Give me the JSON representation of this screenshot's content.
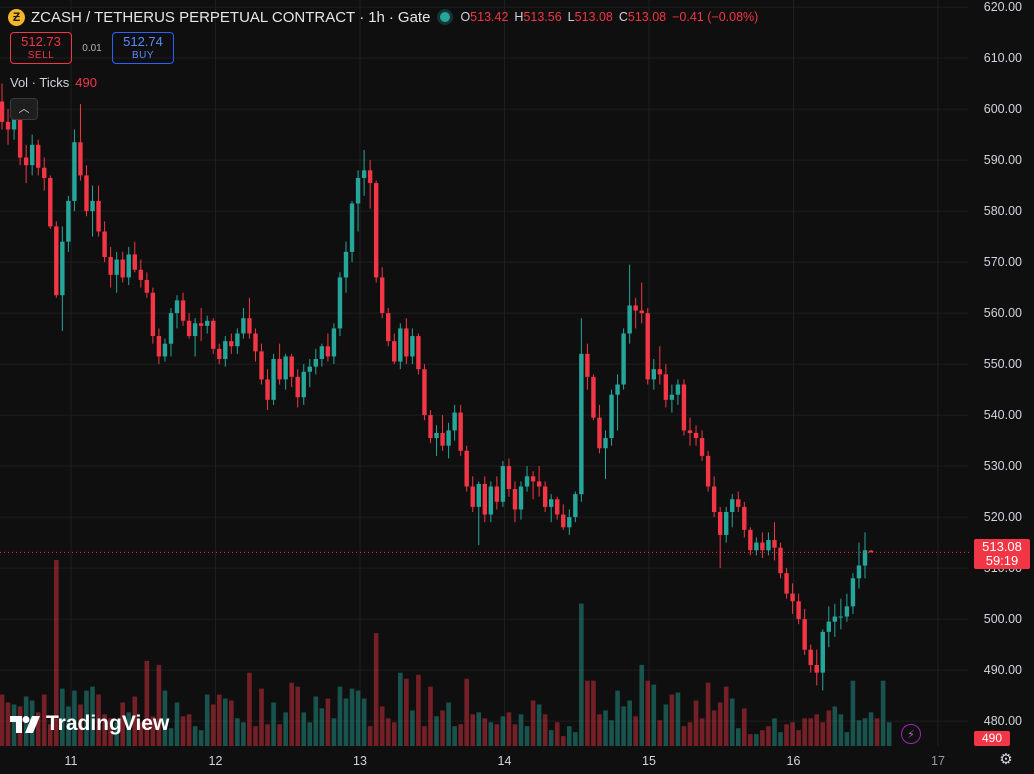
{
  "header": {
    "coin_symbol": "Ƶ",
    "title": "ZCASH / TETHERUS PERPETUAL CONTRACT",
    "interval": "1h",
    "exchange": "Gate",
    "o_label": "O",
    "o_value": "513.42",
    "h_label": "H",
    "h_value": "513.56",
    "l_label": "L",
    "l_value": "513.08",
    "c_label": "C",
    "c_value": "513.08",
    "change": "−0.41 (−0.08%)"
  },
  "trade": {
    "sell_price": "512.73",
    "sell_label": "SELL",
    "spread": "0.01",
    "buy_price": "512.74",
    "buy_label": "BUY"
  },
  "volume_legend": {
    "label": "Vol · Ticks",
    "value": "490"
  },
  "last_price": {
    "price": "513.08",
    "countdown": "59:19"
  },
  "volume_last": "490",
  "branding": "TradingView",
  "colors": {
    "up": "#26a69a",
    "down": "#f23645",
    "background": "#0f0f0f",
    "grid": "#1f1f1f"
  },
  "icons": {
    "collapse": "chevron-up-icon",
    "bolt": "lightning-icon",
    "settings": "gear-icon"
  },
  "chart_data": {
    "type": "candlestick",
    "interval": "1h",
    "x_tick_labels": [
      "11",
      "12",
      "13",
      "14",
      "15",
      "16",
      "17"
    ],
    "y_tick_labels": [
      "480.00",
      "490.00",
      "500.00",
      "510.00",
      "520.00",
      "530.00",
      "540.00",
      "550.00",
      "560.00",
      "570.00",
      "580.00",
      "590.00",
      "600.00",
      "610.00",
      "620.00"
    ],
    "ylim": [
      476,
      621
    ],
    "grid": true,
    "last_price": 513.08,
    "candles": [
      {
        "o": 601.5,
        "h": 605.0,
        "l": 596.0,
        "c": 597.5
      },
      {
        "o": 597.5,
        "h": 600.0,
        "l": 593.0,
        "c": 596.0
      },
      {
        "o": 596.0,
        "h": 601.0,
        "l": 594.0,
        "c": 598.5
      },
      {
        "o": 598.5,
        "h": 600.5,
        "l": 589.0,
        "c": 590.5
      },
      {
        "o": 590.5,
        "h": 593.0,
        "l": 585.5,
        "c": 589.0
      },
      {
        "o": 589.0,
        "h": 595.0,
        "l": 587.0,
        "c": 593.0
      },
      {
        "o": 593.0,
        "h": 594.0,
        "l": 587.0,
        "c": 588.5
      },
      {
        "o": 588.5,
        "h": 590.5,
        "l": 584.0,
        "c": 586.5
      },
      {
        "o": 586.5,
        "h": 587.0,
        "l": 576.5,
        "c": 577.0
      },
      {
        "o": 577.0,
        "h": 578.0,
        "l": 563.0,
        "c": 563.5
      },
      {
        "o": 563.5,
        "h": 577.0,
        "l": 556.5,
        "c": 574.0
      },
      {
        "o": 574.0,
        "h": 583.0,
        "l": 572.0,
        "c": 582.0
      },
      {
        "o": 582.0,
        "h": 596.0,
        "l": 580.0,
        "c": 593.5
      },
      {
        "o": 593.5,
        "h": 601.0,
        "l": 586.0,
        "c": 587.0
      },
      {
        "o": 587.0,
        "h": 589.0,
        "l": 579.0,
        "c": 580.0
      },
      {
        "o": 580.0,
        "h": 585.0,
        "l": 575.0,
        "c": 582.0
      },
      {
        "o": 582.0,
        "h": 585.0,
        "l": 575.0,
        "c": 576.0
      },
      {
        "o": 576.0,
        "h": 578.0,
        "l": 570.0,
        "c": 571.0
      },
      {
        "o": 571.0,
        "h": 573.0,
        "l": 565.0,
        "c": 567.5
      },
      {
        "o": 567.5,
        "h": 572.0,
        "l": 564.0,
        "c": 570.5
      },
      {
        "o": 570.5,
        "h": 572.0,
        "l": 566.0,
        "c": 567.0
      },
      {
        "o": 567.0,
        "h": 573.0,
        "l": 565.5,
        "c": 571.5
      },
      {
        "o": 571.5,
        "h": 574.0,
        "l": 568.0,
        "c": 568.5
      },
      {
        "o": 568.5,
        "h": 570.5,
        "l": 565.0,
        "c": 566.5
      },
      {
        "o": 566.5,
        "h": 568.0,
        "l": 563.0,
        "c": 564.0
      },
      {
        "o": 564.0,
        "h": 565.0,
        "l": 554.0,
        "c": 555.5
      },
      {
        "o": 555.5,
        "h": 557.0,
        "l": 550.0,
        "c": 551.5
      },
      {
        "o": 551.5,
        "h": 555.0,
        "l": 550.5,
        "c": 554.0
      },
      {
        "o": 554.0,
        "h": 561.0,
        "l": 551.5,
        "c": 560.0
      },
      {
        "o": 560.0,
        "h": 563.5,
        "l": 557.0,
        "c": 562.5
      },
      {
        "o": 562.5,
        "h": 564.0,
        "l": 557.5,
        "c": 558.5
      },
      {
        "o": 558.5,
        "h": 560.0,
        "l": 555.0,
        "c": 555.5
      },
      {
        "o": 555.5,
        "h": 559.0,
        "l": 551.5,
        "c": 558.0
      },
      {
        "o": 558.0,
        "h": 561.0,
        "l": 554.5,
        "c": 557.5
      },
      {
        "o": 557.5,
        "h": 559.5,
        "l": 556.0,
        "c": 558.5
      },
      {
        "o": 558.5,
        "h": 559.0,
        "l": 552.0,
        "c": 553.0
      },
      {
        "o": 553.0,
        "h": 554.0,
        "l": 550.0,
        "c": 551.0
      },
      {
        "o": 551.0,
        "h": 555.5,
        "l": 549.5,
        "c": 554.5
      },
      {
        "o": 554.5,
        "h": 556.0,
        "l": 552.0,
        "c": 553.5
      },
      {
        "o": 553.5,
        "h": 557.0,
        "l": 552.0,
        "c": 556.0
      },
      {
        "o": 556.0,
        "h": 561.0,
        "l": 555.0,
        "c": 559.0
      },
      {
        "o": 559.0,
        "h": 563.0,
        "l": 555.0,
        "c": 556.0
      },
      {
        "o": 556.0,
        "h": 557.0,
        "l": 550.5,
        "c": 552.5
      },
      {
        "o": 552.5,
        "h": 554.0,
        "l": 546.0,
        "c": 547.0
      },
      {
        "o": 547.0,
        "h": 549.0,
        "l": 541.0,
        "c": 543.0
      },
      {
        "o": 543.0,
        "h": 552.0,
        "l": 542.0,
        "c": 551.0
      },
      {
        "o": 551.0,
        "h": 554.0,
        "l": 546.0,
        "c": 547.0
      },
      {
        "o": 547.0,
        "h": 552.0,
        "l": 545.0,
        "c": 551.5
      },
      {
        "o": 551.5,
        "h": 552.0,
        "l": 545.5,
        "c": 547.5
      },
      {
        "o": 547.5,
        "h": 549.0,
        "l": 541.5,
        "c": 543.5
      },
      {
        "o": 543.5,
        "h": 550.0,
        "l": 542.0,
        "c": 548.5
      },
      {
        "o": 548.5,
        "h": 551.0,
        "l": 545.5,
        "c": 549.5
      },
      {
        "o": 549.5,
        "h": 553.0,
        "l": 548.0,
        "c": 551.0
      },
      {
        "o": 551.0,
        "h": 554.0,
        "l": 549.5,
        "c": 553.5
      },
      {
        "o": 553.5,
        "h": 556.0,
        "l": 550.5,
        "c": 551.5
      },
      {
        "o": 551.5,
        "h": 558.0,
        "l": 550.0,
        "c": 557.0
      },
      {
        "o": 557.0,
        "h": 568.0,
        "l": 555.5,
        "c": 567.0
      },
      {
        "o": 567.0,
        "h": 574.0,
        "l": 564.0,
        "c": 572.0
      },
      {
        "o": 572.0,
        "h": 582.0,
        "l": 570.0,
        "c": 581.5
      },
      {
        "o": 581.5,
        "h": 588.0,
        "l": 576.0,
        "c": 586.5
      },
      {
        "o": 586.5,
        "h": 592.0,
        "l": 583.0,
        "c": 588.0
      },
      {
        "o": 588.0,
        "h": 590.0,
        "l": 580.5,
        "c": 585.5
      },
      {
        "o": 585.5,
        "h": 586.0,
        "l": 566.0,
        "c": 567.0
      },
      {
        "o": 567.0,
        "h": 569.0,
        "l": 559.0,
        "c": 560.0
      },
      {
        "o": 560.0,
        "h": 561.0,
        "l": 553.5,
        "c": 554.5
      },
      {
        "o": 554.5,
        "h": 556.0,
        "l": 550.0,
        "c": 550.5
      },
      {
        "o": 550.5,
        "h": 558.0,
        "l": 549.0,
        "c": 557.0
      },
      {
        "o": 557.0,
        "h": 559.0,
        "l": 550.0,
        "c": 551.5
      },
      {
        "o": 551.5,
        "h": 557.0,
        "l": 550.0,
        "c": 555.5
      },
      {
        "o": 555.5,
        "h": 556.0,
        "l": 548.0,
        "c": 549.0
      },
      {
        "o": 549.0,
        "h": 550.0,
        "l": 539.0,
        "c": 540.0
      },
      {
        "o": 540.0,
        "h": 541.0,
        "l": 534.5,
        "c": 535.5
      },
      {
        "o": 535.5,
        "h": 538.0,
        "l": 532.0,
        "c": 536.5
      },
      {
        "o": 536.5,
        "h": 540.0,
        "l": 533.0,
        "c": 534.0
      },
      {
        "o": 534.0,
        "h": 538.5,
        "l": 531.5,
        "c": 537.0
      },
      {
        "o": 537.0,
        "h": 542.0,
        "l": 535.0,
        "c": 540.5
      },
      {
        "o": 540.5,
        "h": 542.0,
        "l": 532.0,
        "c": 533.0
      },
      {
        "o": 533.0,
        "h": 534.0,
        "l": 525.0,
        "c": 526.0
      },
      {
        "o": 526.0,
        "h": 528.0,
        "l": 521.0,
        "c": 522.0
      },
      {
        "o": 522.0,
        "h": 527.0,
        "l": 514.5,
        "c": 526.5
      },
      {
        "o": 526.5,
        "h": 528.0,
        "l": 519.0,
        "c": 520.5
      },
      {
        "o": 520.5,
        "h": 527.0,
        "l": 519.0,
        "c": 526.0
      },
      {
        "o": 526.0,
        "h": 528.0,
        "l": 521.5,
        "c": 523.0
      },
      {
        "o": 523.0,
        "h": 531.0,
        "l": 522.0,
        "c": 530.0
      },
      {
        "o": 530.0,
        "h": 531.5,
        "l": 524.0,
        "c": 525.5
      },
      {
        "o": 525.5,
        "h": 527.0,
        "l": 519.0,
        "c": 521.5
      },
      {
        "o": 521.5,
        "h": 527.0,
        "l": 519.5,
        "c": 526.0
      },
      {
        "o": 526.0,
        "h": 530.0,
        "l": 525.0,
        "c": 528.0
      },
      {
        "o": 528.0,
        "h": 529.0,
        "l": 523.5,
        "c": 527.0
      },
      {
        "o": 527.0,
        "h": 530.0,
        "l": 524.0,
        "c": 526.0
      },
      {
        "o": 526.0,
        "h": 527.0,
        "l": 521.0,
        "c": 522.0
      },
      {
        "o": 522.0,
        "h": 524.5,
        "l": 519.0,
        "c": 523.5
      },
      {
        "o": 523.5,
        "h": 524.0,
        "l": 519.5,
        "c": 520.5
      },
      {
        "o": 520.5,
        "h": 522.5,
        "l": 517.5,
        "c": 518.0
      },
      {
        "o": 518.0,
        "h": 521.5,
        "l": 516.5,
        "c": 520.0
      },
      {
        "o": 520.0,
        "h": 525.0,
        "l": 519.0,
        "c": 524.5
      },
      {
        "o": 524.5,
        "h": 559.0,
        "l": 523.0,
        "c": 552.0
      },
      {
        "o": 552.0,
        "h": 554.0,
        "l": 545.0,
        "c": 547.5
      },
      {
        "o": 547.5,
        "h": 548.0,
        "l": 539.0,
        "c": 539.5
      },
      {
        "o": 539.5,
        "h": 542.0,
        "l": 532.5,
        "c": 533.5
      },
      {
        "o": 533.5,
        "h": 537.0,
        "l": 527.5,
        "c": 535.5
      },
      {
        "o": 535.5,
        "h": 545.0,
        "l": 534.0,
        "c": 544.0
      },
      {
        "o": 544.0,
        "h": 548.0,
        "l": 537.0,
        "c": 546.0
      },
      {
        "o": 546.0,
        "h": 557.0,
        "l": 545.0,
        "c": 556.0
      },
      {
        "o": 556.0,
        "h": 569.5,
        "l": 554.0,
        "c": 561.5
      },
      {
        "o": 561.5,
        "h": 563.0,
        "l": 557.0,
        "c": 560.5
      },
      {
        "o": 560.5,
        "h": 566.0,
        "l": 558.0,
        "c": 560.0
      },
      {
        "o": 560.0,
        "h": 561.0,
        "l": 546.0,
        "c": 547.0
      },
      {
        "o": 547.0,
        "h": 551.0,
        "l": 545.0,
        "c": 549.0
      },
      {
        "o": 549.0,
        "h": 553.5,
        "l": 546.0,
        "c": 548.0
      },
      {
        "o": 548.0,
        "h": 550.0,
        "l": 541.5,
        "c": 543.0
      },
      {
        "o": 543.0,
        "h": 546.0,
        "l": 540.5,
        "c": 544.0
      },
      {
        "o": 544.0,
        "h": 547.0,
        "l": 542.0,
        "c": 546.0
      },
      {
        "o": 546.0,
        "h": 547.0,
        "l": 536.0,
        "c": 537.0
      },
      {
        "o": 537.0,
        "h": 539.5,
        "l": 534.0,
        "c": 536.5
      },
      {
        "o": 536.5,
        "h": 538.0,
        "l": 534.0,
        "c": 535.5
      },
      {
        "o": 535.5,
        "h": 537.0,
        "l": 531.0,
        "c": 532.0
      },
      {
        "o": 532.0,
        "h": 533.0,
        "l": 525.0,
        "c": 526.0
      },
      {
        "o": 526.0,
        "h": 528.0,
        "l": 520.0,
        "c": 521.0
      },
      {
        "o": 521.0,
        "h": 522.0,
        "l": 510.0,
        "c": 516.5
      },
      {
        "o": 516.5,
        "h": 522.0,
        "l": 515.0,
        "c": 521.0
      },
      {
        "o": 521.0,
        "h": 524.5,
        "l": 518.0,
        "c": 523.5
      },
      {
        "o": 523.5,
        "h": 525.0,
        "l": 521.0,
        "c": 522.0
      },
      {
        "o": 522.0,
        "h": 523.0,
        "l": 516.0,
        "c": 517.5
      },
      {
        "o": 517.5,
        "h": 518.0,
        "l": 512.5,
        "c": 513.5
      },
      {
        "o": 513.5,
        "h": 516.0,
        "l": 512.5,
        "c": 515.0
      },
      {
        "o": 515.0,
        "h": 517.0,
        "l": 512.0,
        "c": 513.5
      },
      {
        "o": 513.5,
        "h": 517.0,
        "l": 512.5,
        "c": 515.5
      },
      {
        "o": 515.5,
        "h": 519.0,
        "l": 511.5,
        "c": 514.0
      },
      {
        "o": 514.0,
        "h": 515.0,
        "l": 508.0,
        "c": 509.0
      },
      {
        "o": 509.0,
        "h": 510.0,
        "l": 504.0,
        "c": 505.0
      },
      {
        "o": 505.0,
        "h": 507.0,
        "l": 501.0,
        "c": 503.5
      },
      {
        "o": 503.5,
        "h": 505.0,
        "l": 499.0,
        "c": 500.0
      },
      {
        "o": 500.0,
        "h": 502.0,
        "l": 493.0,
        "c": 494.0
      },
      {
        "o": 494.0,
        "h": 495.0,
        "l": 489.5,
        "c": 491.0
      },
      {
        "o": 491.0,
        "h": 494.0,
        "l": 487.0,
        "c": 489.5
      },
      {
        "o": 489.5,
        "h": 498.0,
        "l": 486.0,
        "c": 497.5
      },
      {
        "o": 497.5,
        "h": 502.5,
        "l": 494.5,
        "c": 499.5
      },
      {
        "o": 499.5,
        "h": 503.0,
        "l": 496.5,
        "c": 500.5
      },
      {
        "o": 500.5,
        "h": 504.0,
        "l": 498.0,
        "c": 500.5
      },
      {
        "o": 500.5,
        "h": 505.0,
        "l": 499.5,
        "c": 502.5
      },
      {
        "o": 502.5,
        "h": 509.0,
        "l": 501.0,
        "c": 508.0
      },
      {
        "o": 508.0,
        "h": 515.0,
        "l": 506.0,
        "c": 510.5
      },
      {
        "o": 510.5,
        "h": 517.0,
        "l": 508.0,
        "c": 513.5
      },
      {
        "o": 513.42,
        "h": 513.56,
        "l": 513.08,
        "c": 513.08
      }
    ],
    "volume": [
      26,
      22,
      21,
      20,
      25,
      23,
      17,
      26,
      11,
      94,
      29,
      20,
      28,
      21,
      28,
      30,
      26,
      16,
      14,
      12,
      22,
      17,
      25,
      12,
      43,
      15,
      41,
      28,
      9,
      22,
      15,
      16,
      10,
      8,
      26,
      21,
      26,
      24,
      23,
      14,
      12,
      37,
      10,
      29,
      11,
      22,
      11,
      17,
      32,
      30,
      17,
      12,
      25,
      19,
      24,
      14,
      30,
      24,
      29,
      28,
      24,
      10,
      57,
      20,
      14,
      12,
      37,
      34,
      18,
      36,
      10,
      30,
      15,
      18,
      22,
      10,
      11,
      34,
      16,
      17,
      14,
      12,
      11,
      15,
      17,
      11,
      16,
      10,
      23,
      21,
      16,
      8,
      12,
      5,
      10,
      7,
      72,
      33,
      33,
      16,
      18,
      13,
      28,
      20,
      23,
      15,
      41,
      33,
      31,
      13,
      21,
      26,
      27,
      10,
      12,
      23,
      14,
      32,
      18,
      22,
      30,
      24,
      9,
      19,
      6,
      6,
      8,
      10,
      14,
      7,
      11,
      12,
      8,
      14,
      14,
      16,
      12,
      18,
      20,
      16,
      7,
      33,
      13,
      14,
      17,
      14,
      33,
      12
    ],
    "volume_down": [
      true,
      true,
      false,
      true,
      false,
      false,
      true,
      true,
      true,
      true,
      false,
      false,
      false,
      true,
      false,
      false,
      true,
      true,
      true,
      false,
      true,
      false,
      true,
      true,
      true,
      true,
      true,
      false,
      false,
      false,
      true,
      true,
      false,
      false,
      false,
      true,
      true,
      false,
      true,
      false,
      false,
      true,
      true,
      true,
      true,
      false,
      true,
      false,
      true,
      true,
      false,
      false,
      false,
      false,
      true,
      false,
      false,
      false,
      false,
      false,
      false,
      true,
      true,
      true,
      true,
      true,
      false,
      true,
      false,
      true,
      true,
      true,
      false,
      true,
      false,
      false,
      true,
      true,
      true,
      false,
      true,
      false,
      true,
      false,
      true,
      true,
      false,
      false,
      true,
      false,
      true,
      false,
      true,
      true,
      false,
      false,
      false,
      true,
      true,
      true,
      false,
      false,
      false,
      false,
      false,
      true,
      false,
      true,
      false,
      true,
      false,
      true,
      false,
      true,
      true,
      true,
      true,
      true,
      true,
      true,
      true,
      false,
      false,
      true,
      true,
      false,
      true,
      true,
      false,
      false,
      true,
      true,
      true,
      true,
      true,
      true,
      true,
      true,
      false,
      false,
      false,
      false,
      false,
      false,
      false,
      true
    ]
  }
}
